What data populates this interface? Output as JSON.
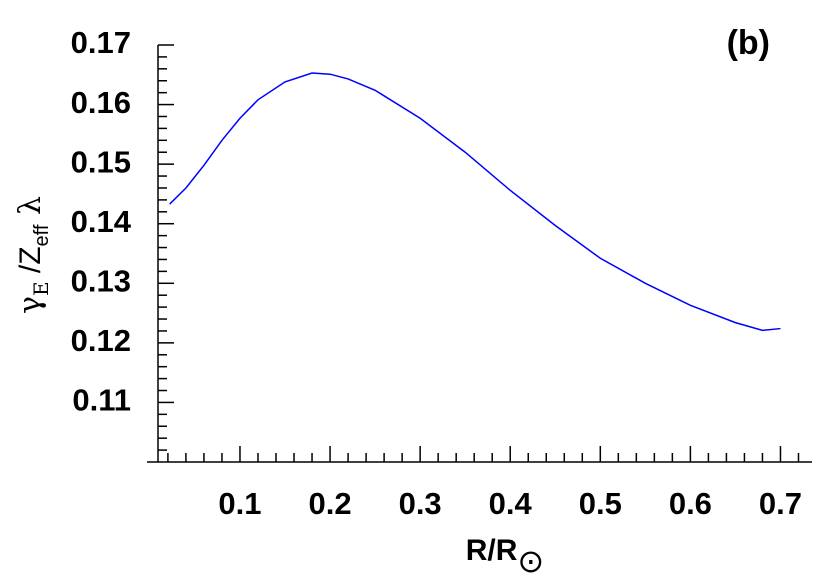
{
  "chart_data": {
    "type": "line",
    "title": "(b)",
    "xlabel": [
      "R/R",
      "⊙"
    ],
    "ylabel": [
      "γ",
      "E",
      " /Z",
      "eff",
      " λ"
    ],
    "x": [
      0.022,
      0.04,
      0.06,
      0.08,
      0.1,
      0.12,
      0.15,
      0.18,
      0.2,
      0.22,
      0.25,
      0.3,
      0.35,
      0.4,
      0.45,
      0.5,
      0.55,
      0.6,
      0.65,
      0.68,
      0.7
    ],
    "series": [
      {
        "color": "#0000ff",
        "values": [
          0.1433,
          0.146,
          0.1498,
          0.154,
          0.1577,
          0.1608,
          0.1638,
          0.1653,
          0.1651,
          0.1643,
          0.1624,
          0.1577,
          0.152,
          0.1456,
          0.1397,
          0.1342,
          0.13,
          0.1263,
          0.1234,
          0.1221,
          0.1224
        ]
      }
    ],
    "xlim": [
      0.009,
      0.735
    ],
    "ylim": [
      0.1,
      0.17
    ],
    "xticks": [
      0.1,
      0.2,
      0.3,
      0.4,
      0.5,
      0.6,
      0.7
    ],
    "yticks": [
      0.11,
      0.12,
      0.13,
      0.14,
      0.15,
      0.16,
      0.17
    ],
    "xminorticks": [
      0.02,
      0.04,
      0.06,
      0.08,
      0.12,
      0.14,
      0.16,
      0.18,
      0.22,
      0.24,
      0.26,
      0.28,
      0.32,
      0.34,
      0.36,
      0.38,
      0.42,
      0.44,
      0.46,
      0.48,
      0.52,
      0.54,
      0.56,
      0.58,
      0.62,
      0.64,
      0.66,
      0.68,
      0.72
    ],
    "yminorticks": [
      0.102,
      0.104,
      0.106,
      0.108,
      0.112,
      0.114,
      0.116,
      0.118,
      0.122,
      0.124,
      0.126,
      0.128,
      0.132,
      0.134,
      0.136,
      0.138,
      0.142,
      0.144,
      0.146,
      0.148,
      0.152,
      0.154,
      0.156,
      0.158,
      0.162,
      0.164,
      0.166,
      0.168
    ]
  }
}
